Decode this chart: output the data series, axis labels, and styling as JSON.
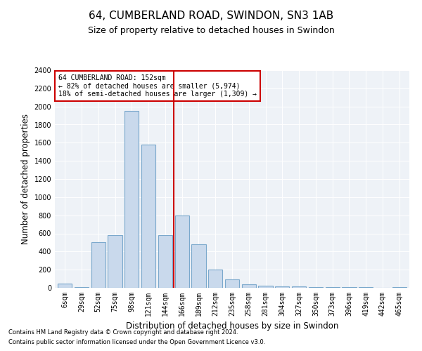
{
  "title": "64, CUMBERLAND ROAD, SWINDON, SN3 1AB",
  "subtitle": "Size of property relative to detached houses in Swindon",
  "xlabel": "Distribution of detached houses by size in Swindon",
  "ylabel": "Number of detached properties",
  "categories": [
    "6sqm",
    "29sqm",
    "52sqm",
    "75sqm",
    "98sqm",
    "121sqm",
    "144sqm",
    "166sqm",
    "189sqm",
    "212sqm",
    "235sqm",
    "258sqm",
    "281sqm",
    "304sqm",
    "327sqm",
    "350sqm",
    "373sqm",
    "396sqm",
    "419sqm",
    "442sqm",
    "465sqm"
  ],
  "values": [
    50,
    5,
    500,
    580,
    1950,
    1580,
    580,
    800,
    480,
    200,
    90,
    35,
    25,
    15,
    12,
    10,
    8,
    5,
    5,
    3,
    8
  ],
  "bar_color": "#c9d9ec",
  "bar_edge_color": "#7aa8cc",
  "vline_x": 6.5,
  "vline_color": "#cc0000",
  "annotation_text": "64 CUMBERLAND ROAD: 152sqm\n← 82% of detached houses are smaller (5,974)\n18% of semi-detached houses are larger (1,309) →",
  "annotation_box_color": "#ffffff",
  "annotation_box_edge": "#cc0000",
  "footer1": "Contains HM Land Registry data © Crown copyright and database right 2024.",
  "footer2": "Contains public sector information licensed under the Open Government Licence v3.0.",
  "ylim": [
    0,
    2400
  ],
  "yticks": [
    0,
    200,
    400,
    600,
    800,
    1000,
    1200,
    1400,
    1600,
    1800,
    2000,
    2200,
    2400
  ],
  "bg_color": "#eef2f7",
  "title_fontsize": 11,
  "subtitle_fontsize": 9,
  "tick_fontsize": 7,
  "label_fontsize": 8.5,
  "footer_fontsize": 6
}
